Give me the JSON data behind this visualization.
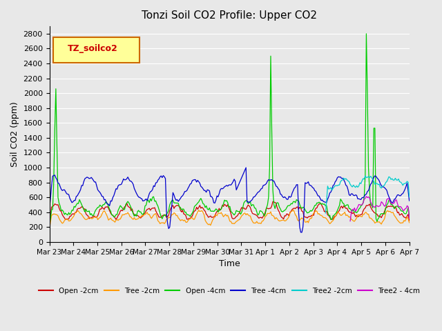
{
  "title": "Tonzi Soil CO2 Profile: Upper CO2",
  "xlabel": "Time",
  "ylabel": "Soil CO2 (ppm)",
  "ylim": [
    0,
    2900
  ],
  "yticks": [
    0,
    200,
    400,
    600,
    800,
    1000,
    1200,
    1400,
    1600,
    1800,
    2000,
    2200,
    2400,
    2600,
    2800
  ],
  "background_color": "#e8e8e8",
  "plot_bg_color": "#e8e8e8",
  "legend_label": "TZ_soilco2",
  "series": {
    "open_2cm": {
      "label": "Open -2cm",
      "color": "#cc0000"
    },
    "tree_2cm": {
      "label": "Tree -2cm",
      "color": "#ff9900"
    },
    "open_4cm": {
      "label": "Open -4cm",
      "color": "#00cc00"
    },
    "tree_4cm": {
      "label": "Tree -4cm",
      "color": "#0000cc"
    },
    "tree2_2cm": {
      "label": "Tree2 -2cm",
      "color": "#00cccc"
    },
    "tree2_4cm": {
      "label": "Tree2 - 4cm",
      "color": "#cc00cc"
    }
  },
  "xtick_labels": [
    "Mar 23",
    "Mar 24",
    "Mar 25",
    "Mar 26",
    "Mar 27",
    "Mar 28",
    "Mar 29",
    "Mar 30",
    "Mar 31",
    "Apr 1",
    "Apr 2",
    "Apr 3",
    "Apr 4",
    "Apr 5",
    "Apr 6",
    "Apr 7"
  ],
  "num_points": 336
}
